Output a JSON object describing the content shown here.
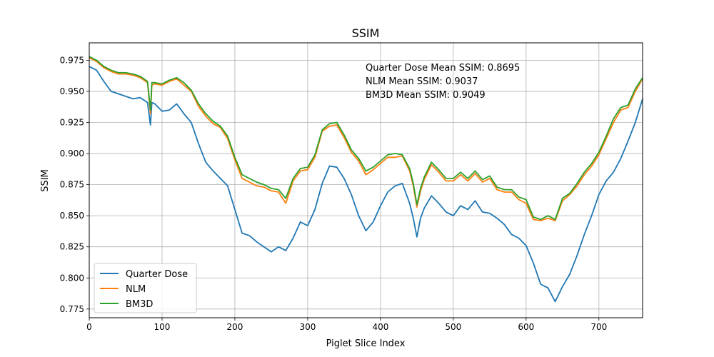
{
  "chart_data": {
    "type": "line",
    "title": "SSIM",
    "xlabel": "Piglet Slice Index",
    "ylabel": "SSIM",
    "xlim": [
      0,
      760
    ],
    "ylim": [
      0.768,
      0.989
    ],
    "xticks": [
      0,
      100,
      200,
      300,
      400,
      500,
      600,
      700
    ],
    "yticks": [
      0.775,
      0.8,
      0.825,
      0.85,
      0.875,
      0.9,
      0.925,
      0.95,
      0.975
    ],
    "xtick_labels": [
      "0",
      "100",
      "200",
      "300",
      "400",
      "500",
      "600",
      "700"
    ],
    "ytick_labels": [
      "0.775",
      "0.800",
      "0.825",
      "0.850",
      "0.875",
      "0.900",
      "0.925",
      "0.950",
      "0.975"
    ],
    "grid": true,
    "legend": "lower-left",
    "annotations": [
      "Quarter Dose Mean SSIM: 0.8695",
      "NLM Mean SSIM: 0.9037",
      "BM3D Mean SSIM: 0.9049"
    ],
    "series": [
      {
        "name": "Quarter Dose",
        "color": "#1f77b4",
        "x": [
          0,
          10,
          20,
          30,
          40,
          50,
          60,
          70,
          80,
          84,
          86,
          90,
          100,
          110,
          120,
          130,
          140,
          150,
          160,
          170,
          180,
          190,
          200,
          210,
          220,
          230,
          240,
          250,
          260,
          270,
          280,
          290,
          300,
          310,
          320,
          330,
          340,
          350,
          360,
          370,
          380,
          390,
          400,
          410,
          420,
          430,
          440,
          445,
          450,
          455,
          460,
          470,
          480,
          490,
          500,
          510,
          520,
          530,
          540,
          550,
          560,
          570,
          580,
          590,
          600,
          610,
          620,
          630,
          640,
          650,
          660,
          670,
          680,
          690,
          700,
          710,
          720,
          730,
          740,
          750,
          760
        ],
        "values": [
          0.97,
          0.967,
          0.958,
          0.95,
          0.948,
          0.946,
          0.944,
          0.945,
          0.941,
          0.923,
          0.941,
          0.94,
          0.934,
          0.935,
          0.94,
          0.932,
          0.925,
          0.908,
          0.893,
          0.886,
          0.88,
          0.874,
          0.855,
          0.836,
          0.834,
          0.829,
          0.825,
          0.821,
          0.825,
          0.822,
          0.832,
          0.845,
          0.842,
          0.855,
          0.876,
          0.89,
          0.889,
          0.88,
          0.867,
          0.85,
          0.838,
          0.845,
          0.858,
          0.869,
          0.874,
          0.876,
          0.86,
          0.848,
          0.833,
          0.848,
          0.856,
          0.866,
          0.86,
          0.853,
          0.85,
          0.858,
          0.855,
          0.862,
          0.853,
          0.852,
          0.848,
          0.843,
          0.835,
          0.832,
          0.826,
          0.812,
          0.795,
          0.792,
          0.781,
          0.793,
          0.803,
          0.818,
          0.835,
          0.85,
          0.867,
          0.878,
          0.885,
          0.896,
          0.91,
          0.925,
          0.944
        ]
      },
      {
        "name": "NLM",
        "color": "#ff7f0e",
        "x": [
          0,
          10,
          20,
          30,
          40,
          50,
          60,
          70,
          80,
          84,
          86,
          90,
          100,
          110,
          120,
          130,
          140,
          150,
          160,
          170,
          180,
          190,
          200,
          210,
          220,
          230,
          240,
          250,
          260,
          270,
          280,
          290,
          300,
          310,
          320,
          330,
          340,
          350,
          360,
          370,
          380,
          390,
          400,
          410,
          420,
          430,
          440,
          445,
          450,
          455,
          460,
          470,
          480,
          490,
          500,
          510,
          520,
          530,
          540,
          550,
          560,
          570,
          580,
          590,
          600,
          610,
          620,
          630,
          640,
          650,
          660,
          670,
          680,
          690,
          700,
          710,
          720,
          730,
          740,
          750,
          760
        ],
        "values": [
          0.977,
          0.974,
          0.969,
          0.966,
          0.964,
          0.964,
          0.963,
          0.961,
          0.957,
          0.932,
          0.955,
          0.956,
          0.955,
          0.958,
          0.96,
          0.955,
          0.95,
          0.938,
          0.93,
          0.924,
          0.921,
          0.912,
          0.895,
          0.88,
          0.877,
          0.874,
          0.873,
          0.87,
          0.869,
          0.86,
          0.878,
          0.886,
          0.887,
          0.897,
          0.918,
          0.922,
          0.923,
          0.913,
          0.901,
          0.894,
          0.883,
          0.887,
          0.892,
          0.897,
          0.897,
          0.898,
          0.886,
          0.874,
          0.857,
          0.87,
          0.879,
          0.891,
          0.885,
          0.878,
          0.878,
          0.883,
          0.878,
          0.884,
          0.877,
          0.88,
          0.871,
          0.869,
          0.869,
          0.863,
          0.86,
          0.847,
          0.846,
          0.848,
          0.846,
          0.862,
          0.867,
          0.874,
          0.883,
          0.89,
          0.899,
          0.912,
          0.925,
          0.935,
          0.937,
          0.95,
          0.96
        ]
      },
      {
        "name": "BM3D",
        "color": "#2ca02c",
        "x": [
          0,
          10,
          20,
          30,
          40,
          50,
          60,
          70,
          80,
          84,
          86,
          90,
          100,
          110,
          120,
          130,
          140,
          150,
          160,
          170,
          180,
          190,
          200,
          210,
          220,
          230,
          240,
          250,
          260,
          270,
          280,
          290,
          300,
          310,
          320,
          330,
          340,
          350,
          360,
          370,
          380,
          390,
          400,
          410,
          420,
          430,
          440,
          445,
          450,
          455,
          460,
          470,
          480,
          490,
          500,
          510,
          520,
          530,
          540,
          550,
          560,
          570,
          580,
          590,
          600,
          610,
          620,
          630,
          640,
          650,
          660,
          670,
          680,
          690,
          700,
          710,
          720,
          730,
          740,
          750,
          760
        ],
        "values": [
          0.978,
          0.975,
          0.97,
          0.967,
          0.965,
          0.965,
          0.964,
          0.962,
          0.958,
          0.935,
          0.957,
          0.957,
          0.956,
          0.959,
          0.961,
          0.957,
          0.951,
          0.94,
          0.932,
          0.926,
          0.922,
          0.914,
          0.897,
          0.883,
          0.88,
          0.877,
          0.875,
          0.872,
          0.871,
          0.864,
          0.88,
          0.888,
          0.889,
          0.899,
          0.919,
          0.924,
          0.925,
          0.915,
          0.903,
          0.896,
          0.886,
          0.889,
          0.894,
          0.899,
          0.9,
          0.899,
          0.888,
          0.876,
          0.859,
          0.872,
          0.881,
          0.893,
          0.887,
          0.88,
          0.88,
          0.885,
          0.88,
          0.886,
          0.879,
          0.882,
          0.873,
          0.871,
          0.871,
          0.865,
          0.863,
          0.849,
          0.847,
          0.85,
          0.847,
          0.864,
          0.868,
          0.876,
          0.885,
          0.892,
          0.901,
          0.914,
          0.928,
          0.937,
          0.939,
          0.952,
          0.961
        ]
      }
    ]
  }
}
